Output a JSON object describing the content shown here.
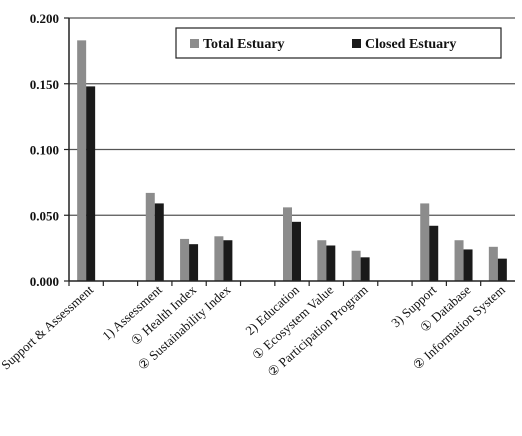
{
  "chart_data": {
    "type": "bar",
    "title": "",
    "xlabel": "",
    "ylabel": "",
    "ylim": [
      0,
      0.2
    ],
    "yticks": [
      "0.000",
      "0.050",
      "0.100",
      "0.150",
      "0.200"
    ],
    "grid": "horizontal",
    "legend_position": "top-right",
    "categories": [
      "Support & Assessment",
      "",
      "1) Assessment",
      "① Health Index",
      "② Sustainability Index",
      "",
      "2) Education",
      "① Ecosystem Value",
      "② Participation Program",
      "",
      "3) Support",
      "① Database",
      "② Information System"
    ],
    "series": [
      {
        "name": "Total Estuary",
        "color": "#8c8c8c",
        "values": [
          0.183,
          null,
          0.067,
          0.032,
          0.034,
          null,
          0.056,
          0.031,
          0.023,
          null,
          0.059,
          0.031,
          0.026
        ]
      },
      {
        "name": "Closed Estuary",
        "color": "#1a1a1a",
        "values": [
          0.148,
          null,
          0.059,
          0.028,
          0.031,
          null,
          0.045,
          0.027,
          0.018,
          null,
          0.042,
          0.024,
          0.017
        ]
      }
    ]
  }
}
